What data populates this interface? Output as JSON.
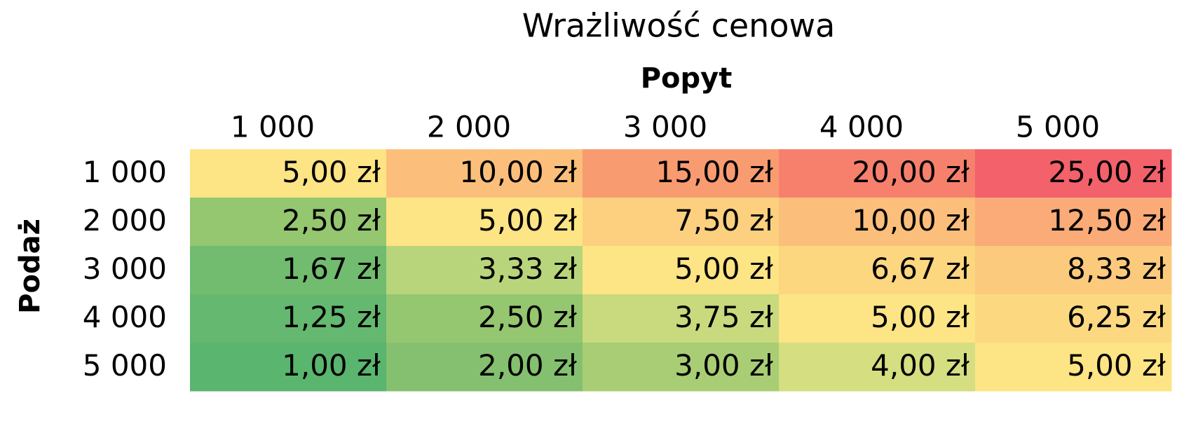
{
  "header": {
    "title": "Wrażliwość cenowa",
    "column_label": "Popyt",
    "row_label": "Podaż"
  },
  "table": {
    "columns": [
      "1 000",
      "2 000",
      "3 000",
      "4 000",
      "5 000"
    ],
    "row_headers": [
      "1 000",
      "2 000",
      "3 000",
      "4 000",
      "5 000"
    ],
    "rows": [
      [
        "5,00 zł",
        "10,00 zł",
        "15,00 zł",
        "20,00 zł",
        "25,00 zł"
      ],
      [
        "2,50 zł",
        "5,00 zł",
        "7,50 zł",
        "10,00 zł",
        "12,50 zł"
      ],
      [
        "1,67 zł",
        "3,33 zł",
        "5,00 zł",
        "6,67 zł",
        "8,33 zł"
      ],
      [
        "1,25 zł",
        "2,50 zł",
        "3,75 zł",
        "5,00 zł",
        "6,25 zł"
      ],
      [
        "1,00 zł",
        "2,00 zł",
        "3,00 zł",
        "4,00 zł",
        "5,00 zł"
      ]
    ],
    "cell_colors": [
      [
        "#fde484",
        "#fbbf7b",
        "#f99b71",
        "#f7806d",
        "#f3616a"
      ],
      [
        "#95c670",
        "#fde484",
        "#fcd07f",
        "#fbbf7b",
        "#faab77"
      ],
      [
        "#71bc6f",
        "#b8d57b",
        "#fde484",
        "#fcd780",
        "#fbca7d"
      ],
      [
        "#64b86f",
        "#95c670",
        "#c8da7d",
        "#fde484",
        "#fcd981"
      ],
      [
        "#5ab56e",
        "#84c06f",
        "#a9cd74",
        "#d5de80",
        "#fde484"
      ]
    ]
  }
}
